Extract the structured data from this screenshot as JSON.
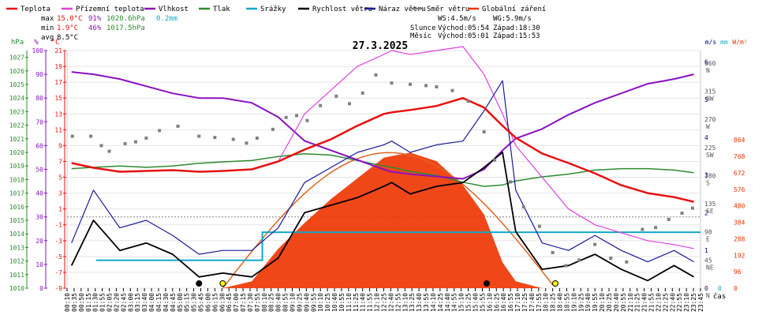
{
  "chart_data": {
    "type": "line",
    "title": "27.3.2025",
    "legend": [
      {
        "name": "Teplota",
        "color": "#e81111"
      },
      {
        "name": "Přízemní teplota",
        "color": "#e040e0"
      },
      {
        "name": "Vlhkost",
        "color": "#8a10c0"
      },
      {
        "name": "Tlak",
        "color": "#2e8b2e"
      },
      {
        "name": "Srážky",
        "color": "#11a8c8"
      },
      {
        "name": "Rychlost větru",
        "color": "#000000"
      },
      {
        "name": "Náraz větru",
        "color": "#1a1a9a"
      },
      {
        "name": "Směr větru",
        "color": "#808080"
      },
      {
        "name": "Globální záření",
        "color": "#ee3300"
      }
    ],
    "stats": {
      "rows": [
        {
          "label": "max",
          "temp": "15.0°C",
          "hum": "91%",
          "press": "1020.6hPa",
          "rain": "0.2mm"
        },
        {
          "label": "min",
          "temp": "1.9°C",
          "hum": "46%",
          "press": "1017.5hPa",
          "rain": ""
        },
        {
          "label": "avg",
          "temp": "8.5°C",
          "hum": "",
          "press": "",
          "rain": ""
        }
      ],
      "wind_avg": "WS:4.5m/s",
      "wind_gust": "WG:5.9m/s",
      "sun_label": "Slunce",
      "sun_rise": "Východ:05:54",
      "sun_set": "Západ:18:30",
      "moon_label": "Měsíc",
      "moon_rise": "Východ:05:01",
      "moon_set": "Západ:15:53"
    },
    "axes": {
      "left": [
        {
          "name": "hPa",
          "color": "#2e8b2e",
          "ticks": [
            "1027",
            "1026",
            "1025",
            "1024",
            "1023",
            "1022",
            "1021",
            "1020",
            "1019",
            "1018",
            "1017",
            "1016",
            "1015",
            "1014",
            "1013",
            "1012",
            "1011",
            "1010"
          ]
        },
        {
          "name": "%",
          "color": "#8a10c0",
          "ticks": [
            "100",
            "90",
            "80",
            "70",
            "60",
            "50",
            "40",
            "30",
            "20",
            "10",
            "0"
          ]
        },
        {
          "name": "°C",
          "color": "#e81111",
          "ticks": [
            "21",
            "19",
            "17",
            "15",
            "13",
            "11",
            "9",
            "7",
            "5",
            "3",
            "1",
            "-1",
            "-3",
            "-5",
            "-7",
            "-9"
          ]
        }
      ],
      "right": [
        {
          "name": "m/s",
          "color": "#000080",
          "ticks": [
            "6",
            "5",
            "4",
            "3",
            "2",
            "1",
            "0"
          ]
        },
        {
          "name": "mm",
          "color": "#11a8c8",
          "ticks": [
            "1",
            "0"
          ]
        },
        {
          "name": "W/m²",
          "color": "#ee3300",
          "ticks": [
            "864",
            "768",
            "672",
            "576",
            "480",
            "384",
            "288",
            "192",
            "96",
            "0"
          ]
        },
        {
          "name": "dir",
          "color": "#555555",
          "ticks": [
            "360 N",
            "315 NW",
            "270 W",
            "225 SW",
            "180 S",
            "135 SE",
            "90 E",
            "45 NE",
            "0 N"
          ]
        }
      ],
      "x_label": "čas",
      "x_ticks": [
        "00:10",
        "00:35",
        "00:50",
        "01:15",
        "01:30",
        "01:55",
        "02:05",
        "02:20",
        "02:45",
        "03:00",
        "03:15",
        "03:40",
        "04:00",
        "04:15",
        "04:30",
        "04:45",
        "05:00",
        "05:15",
        "05:30",
        "05:45",
        "06:00",
        "06:15",
        "06:30",
        "06:45",
        "07:00",
        "07:15",
        "07:30",
        "07:55",
        "08:10",
        "08:25",
        "08:40",
        "08:55",
        "09:10",
        "09:25",
        "09:40",
        "09:55",
        "10:10",
        "10:25",
        "10:40",
        "10:55",
        "11:10",
        "11:25",
        "11:40",
        "11:55",
        "12:10",
        "12:25",
        "12:40",
        "12:55",
        "13:10",
        "13:25",
        "13:40",
        "13:55",
        "14:10",
        "14:25",
        "14:40",
        "14:55",
        "15:10",
        "15:25",
        "15:40",
        "15:55",
        "16:10",
        "16:25",
        "16:40",
        "16:55",
        "17:10",
        "17:25",
        "17:40",
        "17:55",
        "18:10",
        "18:25",
        "18:40",
        "18:55",
        "19:10",
        "19:25",
        "19:40",
        "19:55",
        "20:10",
        "20:25",
        "20:40",
        "20:55",
        "21:10",
        "21:25",
        "21:40",
        "21:55",
        "22:10",
        "22:25",
        "22:40",
        "22:55",
        "23:10",
        "23:25",
        "23:45"
      ]
    },
    "x_hours": [
      0.17,
      1,
      2,
      3,
      4,
      5,
      5.9,
      7,
      8,
      9,
      10,
      11,
      12,
      12.3,
      13,
      14,
      15,
      15.8,
      16.5,
      17,
      18,
      19,
      20,
      21,
      22,
      23,
      23.75
    ],
    "temperature": [
      6.8,
      6.2,
      5.7,
      5.8,
      5.9,
      5.7,
      5.8,
      6.0,
      7.0,
      8.5,
      9.8,
      11.5,
      13.0,
      13.2,
      13.5,
      14.0,
      15.0,
      13.8,
      11.5,
      10.0,
      8.0,
      6.8,
      5.5,
      4.0,
      3.0,
      2.5,
      1.9
    ],
    "ground_temp": [
      null,
      null,
      null,
      null,
      null,
      null,
      null,
      null,
      7.0,
      13.0,
      16.0,
      19.0,
      20.5,
      21.0,
      20.5,
      21.0,
      21.5,
      18.0,
      13.0,
      9.0,
      5.0,
      1.0,
      -1.0,
      -2.0,
      -3.0,
      -3.5,
      -4.0
    ],
    "humidity": [
      91,
      90,
      88,
      85,
      82,
      80,
      80,
      78,
      72,
      62,
      58,
      54,
      50,
      49,
      48,
      47,
      46,
      50,
      58,
      63,
      67,
      73,
      78,
      82,
      86,
      88,
      90
    ],
    "pressure": [
      1018.8,
      1018.9,
      1019.0,
      1018.9,
      1019.0,
      1019.2,
      1019.3,
      1019.4,
      1019.7,
      1019.9,
      1019.8,
      1019.4,
      1019.0,
      1018.9,
      1018.6,
      1018.3,
      1017.8,
      1017.5,
      1017.6,
      1017.9,
      1018.2,
      1018.4,
      1018.7,
      1018.8,
      1018.8,
      1018.7,
      1018.5
    ],
    "rain": {
      "step1_hour": 1.1,
      "step1_value": 0.1,
      "step2_hour": 7.4,
      "step2_value": 0.2
    },
    "wind_speed": [
      0.6,
      1.8,
      1.0,
      1.2,
      0.9,
      0.3,
      0.4,
      0.3,
      0.8,
      2.0,
      2.2,
      2.4,
      2.7,
      2.8,
      2.5,
      2.7,
      2.8,
      3.2,
      3.6,
      1.5,
      0.5,
      0.6,
      0.9,
      0.5,
      0.2,
      0.6,
      0.3
    ],
    "wind_gust": [
      1.2,
      2.6,
      1.6,
      1.8,
      1.4,
      0.9,
      1.0,
      1.0,
      1.6,
      2.8,
      3.2,
      3.6,
      3.8,
      3.9,
      3.6,
      3.8,
      3.9,
      4.7,
      5.5,
      2.6,
      1.2,
      1.0,
      1.4,
      1.0,
      0.7,
      1.0,
      0.7
    ],
    "wind_dir": [
      {
        "h": 0.2,
        "d": 243
      },
      {
        "h": 0.9,
        "d": 243
      },
      {
        "h": 1.3,
        "d": 228
      },
      {
        "h": 1.6,
        "d": 219
      },
      {
        "h": 2.2,
        "d": 231
      },
      {
        "h": 2.6,
        "d": 234
      },
      {
        "h": 3.0,
        "d": 240
      },
      {
        "h": 3.5,
        "d": 252
      },
      {
        "h": 4.2,
        "d": 259
      },
      {
        "h": 5.0,
        "d": 243
      },
      {
        "h": 5.6,
        "d": 241
      },
      {
        "h": 6.3,
        "d": 238
      },
      {
        "h": 6.8,
        "d": 232
      },
      {
        "h": 7.2,
        "d": 240
      },
      {
        "h": 7.8,
        "d": 254
      },
      {
        "h": 8.3,
        "d": 273
      },
      {
        "h": 8.7,
        "d": 276
      },
      {
        "h": 9.1,
        "d": 268
      },
      {
        "h": 9.6,
        "d": 292
      },
      {
        "h": 10.2,
        "d": 307
      },
      {
        "h": 10.7,
        "d": 295
      },
      {
        "h": 11.2,
        "d": 312
      },
      {
        "h": 11.7,
        "d": 341
      },
      {
        "h": 12.3,
        "d": 328
      },
      {
        "h": 13.0,
        "d": 326
      },
      {
        "h": 13.6,
        "d": 324
      },
      {
        "h": 14.0,
        "d": 322
      },
      {
        "h": 14.6,
        "d": 316
      },
      {
        "h": 15.2,
        "d": 299
      },
      {
        "h": 15.8,
        "d": 250
      },
      {
        "h": 16.2,
        "d": 205
      },
      {
        "h": 16.8,
        "d": 170
      },
      {
        "h": 17.3,
        "d": 130
      },
      {
        "h": 17.9,
        "d": 99
      },
      {
        "h": 18.4,
        "d": 57
      },
      {
        "h": 18.9,
        "d": 36
      },
      {
        "h": 19.4,
        "d": 45
      },
      {
        "h": 20.0,
        "d": 70
      },
      {
        "h": 20.6,
        "d": 48
      },
      {
        "h": 21.2,
        "d": 42
      },
      {
        "h": 21.8,
        "d": 94
      },
      {
        "h": 22.3,
        "d": 97
      },
      {
        "h": 22.8,
        "d": 110
      },
      {
        "h": 23.3,
        "d": 120
      },
      {
        "h": 23.7,
        "d": 128
      }
    ],
    "radiation": [
      0,
      0,
      0,
      0,
      0,
      0,
      0,
      40,
      230,
      380,
      520,
      640,
      760,
      770,
      790,
      740,
      600,
      430,
      150,
      40,
      0,
      0,
      0,
      0,
      0,
      0,
      0
    ],
    "markers": [
      {
        "h": 5.9,
        "label": "sunrise",
        "color": "#ffff00"
      },
      {
        "h": 18.5,
        "label": "sunset",
        "color": "#ffff00"
      },
      {
        "h": 5.0,
        "label": "moonrise",
        "color": "#000000"
      },
      {
        "h": 15.9,
        "label": "moonset",
        "color": "#000000"
      }
    ]
  }
}
